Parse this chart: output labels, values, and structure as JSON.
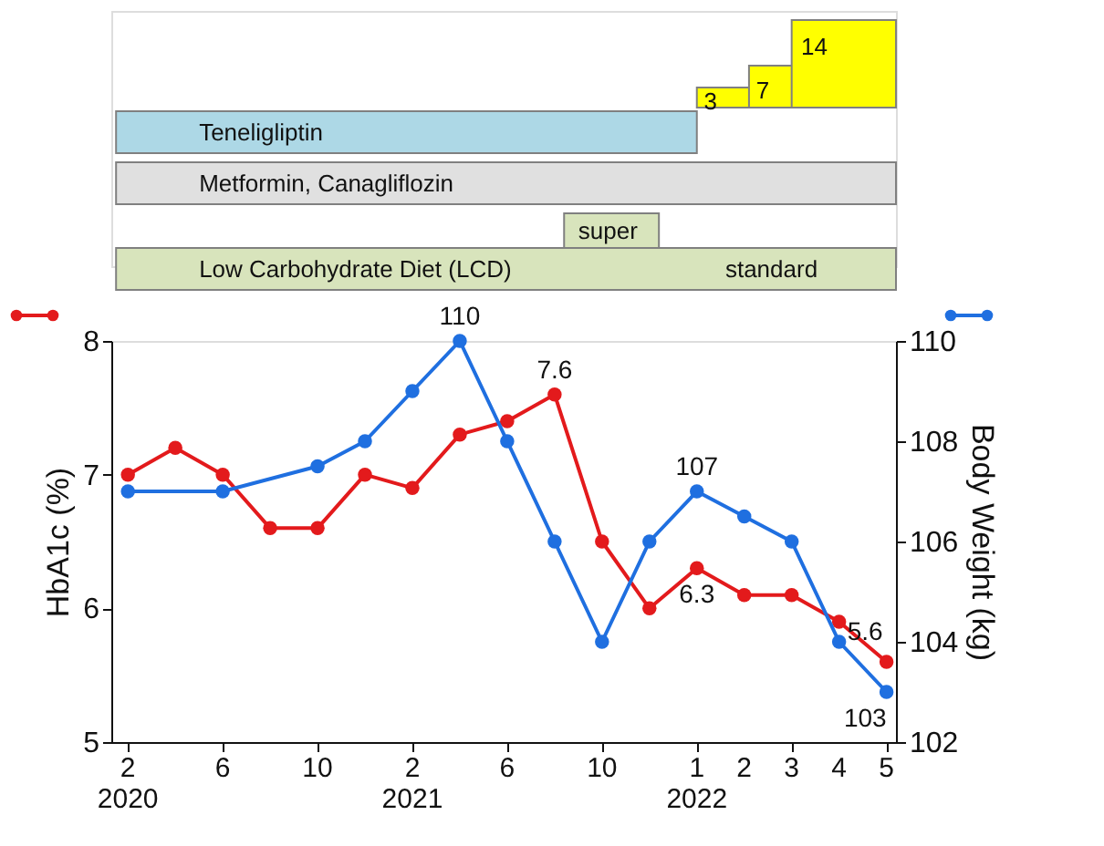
{
  "chart_data": [
    {
      "type": "other",
      "annotations": [
        "14",
        "7",
        "3",
        "Teneligliptin",
        "Metformin, Canagliflozin",
        "super",
        "Low Carbohydrate Diet (LCD)",
        "standard"
      ]
    },
    {
      "type": "line",
      "categories": [
        "2\n2020",
        null,
        "6",
        null,
        "10",
        null,
        "2\n2021",
        null,
        "6",
        null,
        "10",
        null,
        "1\n2022",
        "2",
        "3",
        "4",
        "5"
      ],
      "ylabel": "HbA1c (%)",
      "y2label": "Body Weight (kg)",
      "ylim": [
        5,
        8
      ],
      "yticks": [
        5,
        6,
        7,
        8
      ],
      "y2lim": [
        102,
        110
      ],
      "y2ticks": [
        102,
        104,
        106,
        108,
        110
      ],
      "grid": false,
      "marker": "circle",
      "line_style": "solid",
      "series": [
        {
          "color": "#e31a1c",
          "axis": "y",
          "values": [
            7.0,
            7.2,
            7.0,
            6.6,
            6.6,
            7.0,
            6.9,
            7.3,
            7.4,
            7.6,
            6.5,
            6.0,
            6.3,
            6.1,
            6.1,
            5.9,
            5.6
          ],
          "value_labels": [
            null,
            null,
            null,
            null,
            null,
            null,
            null,
            null,
            null,
            "7.6",
            null,
            null,
            "6.3",
            null,
            null,
            null,
            "5.6"
          ]
        },
        {
          "color": "#1f6fe0",
          "axis": "y2",
          "values": [
            107.0,
            null,
            107.0,
            null,
            107.5,
            108.0,
            109.0,
            110,
            108.0,
            106.0,
            104.0,
            106.0,
            107,
            106.5,
            106.0,
            104.0,
            103
          ],
          "value_labels": [
            null,
            null,
            null,
            null,
            null,
            null,
            null,
            "110",
            null,
            null,
            null,
            null,
            "107",
            null,
            null,
            null,
            "103"
          ]
        }
      ]
    }
  ]
}
